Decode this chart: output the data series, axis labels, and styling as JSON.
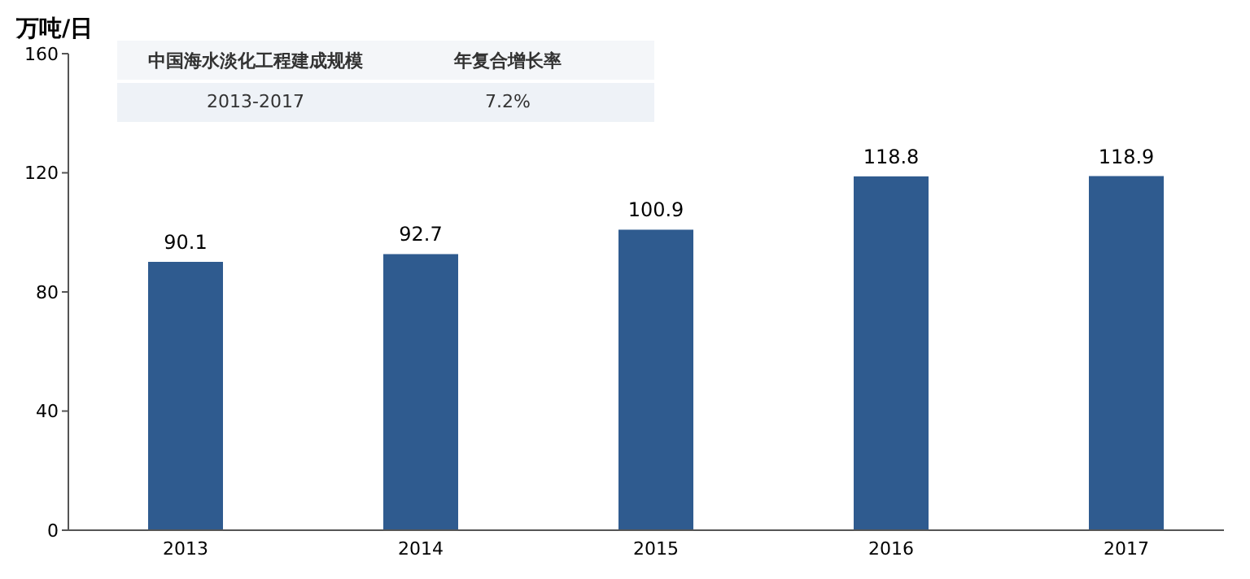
{
  "chart_data": {
    "type": "bar",
    "ylabel": "万吨/日",
    "categories": [
      "2013",
      "2014",
      "2015",
      "2016",
      "2017"
    ],
    "values": [
      90.1,
      92.7,
      100.9,
      118.8,
      118.9
    ],
    "color": "#2f5b8f",
    "ylim": [
      0,
      160
    ],
    "yticks": [
      0,
      40,
      80,
      120,
      160
    ],
    "data_labels": true,
    "grid": false,
    "annotations": [
      "中国海水淡化工程建成规模",
      "年复合增长率",
      "2013-2017",
      "7.2%"
    ]
  }
}
